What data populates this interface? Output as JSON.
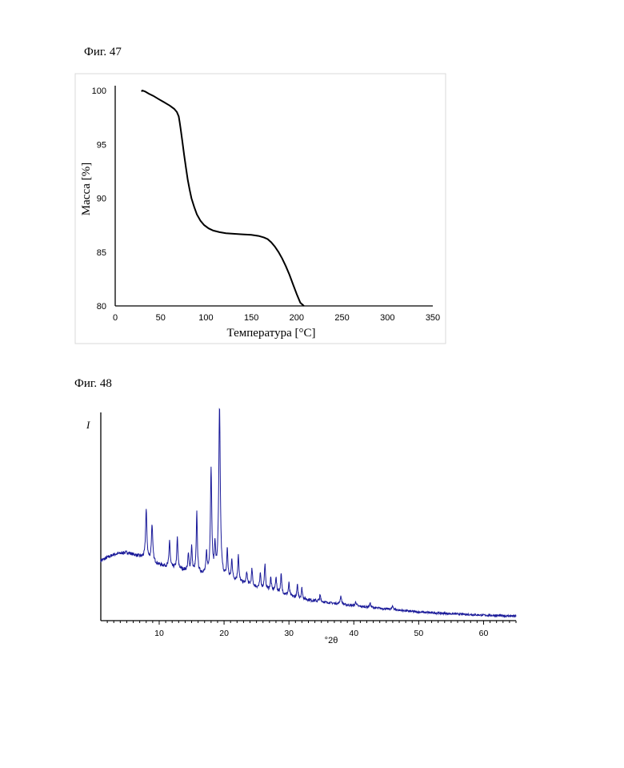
{
  "fig47": {
    "label": "Фиг. 47",
    "chart_data": {
      "type": "line",
      "title": "",
      "xlabel": "Температура [°C]",
      "ylabel": "Масса [%]",
      "xlim": [
        0,
        350
      ],
      "ylim": [
        80,
        100
      ],
      "xticks": [
        0,
        50,
        100,
        150,
        200,
        250,
        300,
        350
      ],
      "yticks": [
        80,
        85,
        90,
        95,
        100
      ],
      "line_color": "#000000",
      "grid": false,
      "series": [
        {
          "x": [
            29,
            30,
            33,
            37,
            42,
            48,
            54,
            60,
            65,
            68,
            70,
            71,
            72,
            74,
            76,
            78,
            80,
            82,
            84,
            87,
            90,
            94,
            98,
            103,
            108,
            115,
            122,
            130,
            140,
            150,
            158,
            164,
            168,
            172,
            176,
            180,
            184,
            188,
            192,
            196,
            200,
            204,
            208
          ],
          "y": [
            99.9,
            100.0,
            99.9,
            99.7,
            99.5,
            99.2,
            98.9,
            98.6,
            98.3,
            98.0,
            97.6,
            97.1,
            96.5,
            95.3,
            94.0,
            92.8,
            91.7,
            90.8,
            90.0,
            89.2,
            88.5,
            87.9,
            87.5,
            87.2,
            87.0,
            86.85,
            86.75,
            86.7,
            86.65,
            86.6,
            86.5,
            86.35,
            86.2,
            85.9,
            85.5,
            85.0,
            84.4,
            83.7,
            82.9,
            82.0,
            81.1,
            80.3,
            80.0
          ]
        }
      ]
    }
  },
  "fig48": {
    "label": "Фиг. 48",
    "chart_data": {
      "type": "line",
      "title": "",
      "xlabel": "°2θ",
      "ylabel": "I",
      "xlim": [
        1,
        65
      ],
      "ylim": [
        0,
        100
      ],
      "xticks": [
        10,
        20,
        30,
        40,
        50,
        60
      ],
      "line_color": "#1a1a99",
      "grid": false,
      "background": [
        [
          1,
          28
        ],
        [
          3,
          31
        ],
        [
          5,
          32
        ],
        [
          7,
          30
        ],
        [
          10,
          26
        ],
        [
          13,
          24
        ],
        [
          16,
          22
        ],
        [
          19,
          20
        ],
        [
          22,
          18
        ],
        [
          25,
          15
        ],
        [
          28,
          13
        ],
        [
          31,
          10
        ],
        [
          35,
          8
        ],
        [
          40,
          6
        ],
        [
          45,
          4.5
        ],
        [
          50,
          3
        ],
        [
          55,
          2.2
        ],
        [
          60,
          1.5
        ],
        [
          65,
          1
        ]
      ],
      "peaks": [
        [
          8.0,
          24,
          0.12
        ],
        [
          8.9,
          18,
          0.12
        ],
        [
          11.6,
          13,
          0.1
        ],
        [
          12.8,
          15,
          0.1
        ],
        [
          14.5,
          8,
          0.1
        ],
        [
          15.0,
          12,
          0.1
        ],
        [
          15.8,
          29,
          0.1
        ],
        [
          17.3,
          10,
          0.1
        ],
        [
          18.0,
          52,
          0.12
        ],
        [
          18.6,
          14,
          0.1
        ],
        [
          19.3,
          82,
          0.14
        ],
        [
          20.5,
          14,
          0.1
        ],
        [
          21.2,
          10,
          0.1
        ],
        [
          22.2,
          13,
          0.1
        ],
        [
          23.5,
          6,
          0.1
        ],
        [
          24.3,
          8,
          0.1
        ],
        [
          25.6,
          7,
          0.1
        ],
        [
          26.3,
          12,
          0.1
        ],
        [
          27.2,
          6,
          0.1
        ],
        [
          28.0,
          7,
          0.1
        ],
        [
          28.8,
          9,
          0.1
        ],
        [
          30.0,
          6,
          0.1
        ],
        [
          31.3,
          6,
          0.1
        ],
        [
          32.0,
          5,
          0.1
        ],
        [
          34.8,
          3,
          0.1
        ],
        [
          38.0,
          4,
          0.12
        ],
        [
          40.3,
          2,
          0.12
        ],
        [
          42.5,
          2,
          0.12
        ],
        [
          46.0,
          1.5,
          0.15
        ]
      ]
    }
  }
}
